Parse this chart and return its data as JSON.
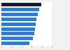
{
  "values": [
    79,
    75,
    72,
    70,
    68,
    67,
    65,
    62,
    55
  ],
  "bar_colors": [
    "#1a1a2e",
    "#2d7dd2",
    "#2d7dd2",
    "#2d7dd2",
    "#2d7dd2",
    "#2d7dd2",
    "#2d7dd2",
    "#2d7dd2",
    "#2d7dd2"
  ],
  "background_color": "#f2f2f2",
  "plot_bg_color": "#ffffff",
  "xlim": [
    0,
    100
  ],
  "bar_height": 0.72,
  "figsize": [
    1.0,
    0.71
  ],
  "dpi": 100
}
